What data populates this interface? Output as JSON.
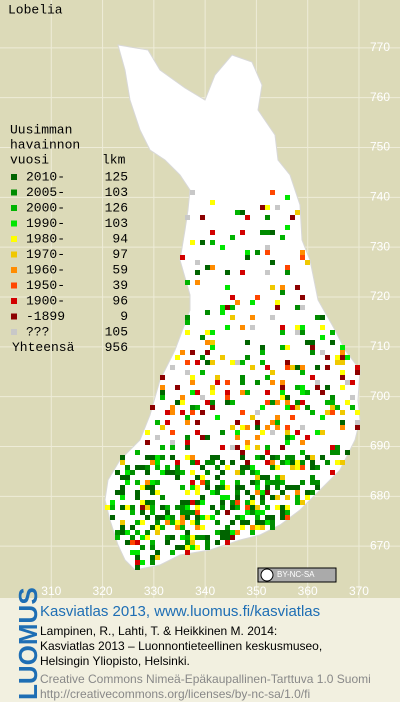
{
  "title": "Lobelia",
  "legend": {
    "heading": [
      "Uusimman",
      "havainnon",
      "vuosi"
    ],
    "count_heading": "lkm",
    "rows": [
      {
        "label": "2010-",
        "count": 125,
        "color": "#006400"
      },
      {
        "label": "2005-",
        "count": 103,
        "color": "#008c00"
      },
      {
        "label": "2000-",
        "count": 126,
        "color": "#00b400"
      },
      {
        "label": "1990-",
        "count": 103,
        "color": "#00e600"
      },
      {
        "label": "1980-",
        "count": 94,
        "color": "#ffff00"
      },
      {
        "label": "1970-",
        "count": 97,
        "color": "#f0c800"
      },
      {
        "label": "1960-",
        "count": 59,
        "color": "#ff8c00"
      },
      {
        "label": "1950-",
        "count": 39,
        "color": "#ff4600"
      },
      {
        "label": "1900-",
        "count": 96,
        "color": "#d20000"
      },
      {
        "label": "-1899",
        "count": 9,
        "color": "#8c0000"
      },
      {
        "label": "???",
        "count": 105,
        "color": "#c8c8c8"
      }
    ],
    "total_label": "Yhteensä",
    "total": 956
  },
  "map": {
    "yticks": [
      770,
      760,
      750,
      740,
      730,
      720,
      710,
      700,
      690,
      680,
      670
    ],
    "xticks": [
      310,
      320,
      330,
      340,
      350,
      360,
      370
    ],
    "ylim": [
      779.6,
      659.6
    ],
    "xlim": [
      300,
      378
    ]
  },
  "license_badge": "BY-NC-SA",
  "footer": {
    "brand": "LUOMUS",
    "headline": "Kasviatlas 2013, www.luomus.fi/kasviatlas",
    "citation": [
      "Lampinen, R., Lahti, T. & Heikkinen M. 2014:",
      "Kasviatlas 2013 – Luonnontieteellinen keskusmuseo,",
      "Helsingin Yliopisto, Helsinki."
    ],
    "license": [
      "Creative Commons Nimeä-Epäkaupallinen-Tarttuva 1.0 Suomi",
      "http://creativecommons.org/licenses/by-nc-sa/1.0/fi"
    ]
  }
}
